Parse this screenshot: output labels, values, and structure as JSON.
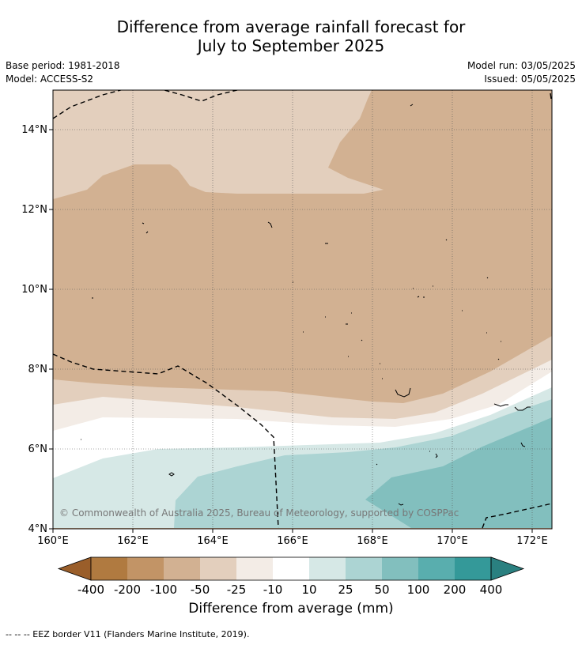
{
  "title": {
    "line1": "Difference from average rainfall forecast for",
    "line2": "July to September 2025"
  },
  "meta": {
    "base_period": "Base period: 1981-2018",
    "model": "Model: ACCESS-S2",
    "model_run": "Model run: 03/05/2025",
    "issued": "Issued: 05/05/2025"
  },
  "map": {
    "lat_labels": [
      "14°N",
      "12°N",
      "10°N",
      "8°N",
      "6°N",
      "4°N"
    ],
    "lon_labels": [
      "160°E",
      "162°E",
      "164°E",
      "166°E",
      "168°E",
      "170°E",
      "172°E"
    ],
    "copyright": "© Commonwealth of Australia 2025, Bureau of Meteorology, supported by COSPPac",
    "lat_range": [
      4,
      15
    ],
    "lon_range": [
      160,
      172.5
    ],
    "gridlines": true
  },
  "colorbar": {
    "ticks": [
      "-400",
      "-200",
      "-100",
      "-50",
      "-25",
      "-10",
      "10",
      "25",
      "50",
      "100",
      "200",
      "400"
    ],
    "colors": {
      "under": "#9a5e2a",
      "bins": [
        "#b07a40",
        "#c29466",
        "#d2b192",
        "#e3cfbd",
        "#f3ece6",
        "#ffffff",
        "#d6e8e6",
        "#acd4d3",
        "#82bfbe",
        "#59aeae",
        "#349999"
      ],
      "over": "#2a8080"
    },
    "label": "Difference from average (mm)"
  },
  "footnote": "--  --  -- EEZ border V11 (Flanders Marine Institute, 2019)."
}
